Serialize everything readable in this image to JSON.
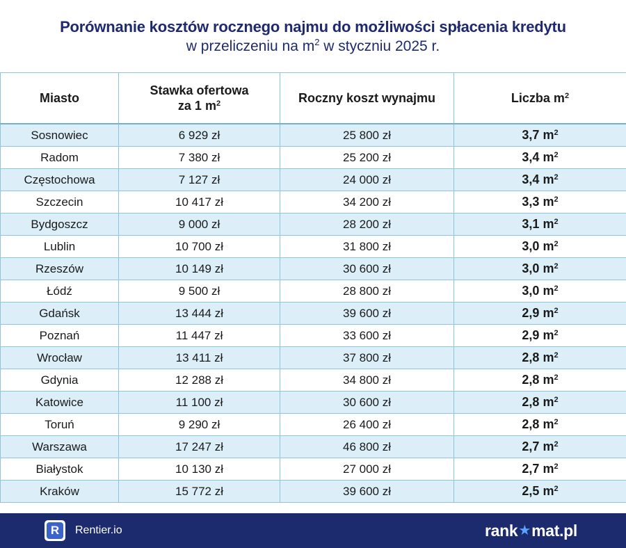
{
  "header": {
    "title": "Porównanie kosztów rocznego najmu do możliwości spłacenia kredytu",
    "subtitle_before": "w przeliczeniu na m",
    "subtitle_sup": "2",
    "subtitle_after": " w styczniu 2025 r."
  },
  "table": {
    "headers": {
      "city": "Miasto",
      "rate_line1": "Stawka ofertowa",
      "rate_line2": "za 1 m",
      "rate_sup": "2",
      "rent": "Roczny koszt wynajmu",
      "sqm": "Liczba m",
      "sqm_sup": "2"
    },
    "unit_sup": "2",
    "rows": [
      {
        "city": "Sosnowiec",
        "rate": "6 929 zł",
        "rent": "25 800 zł",
        "sqm": "3,7 m"
      },
      {
        "city": "Radom",
        "rate": "7 380 zł",
        "rent": "25 200 zł",
        "sqm": "3,4 m"
      },
      {
        "city": "Częstochowa",
        "rate": "7 127 zł",
        "rent": "24 000 zł",
        "sqm": "3,4 m"
      },
      {
        "city": "Szczecin",
        "rate": "10 417 zł",
        "rent": "34 200 zł",
        "sqm": "3,3 m"
      },
      {
        "city": "Bydgoszcz",
        "rate": "9 000 zł",
        "rent": "28 200 zł",
        "sqm": "3,1 m"
      },
      {
        "city": "Lublin",
        "rate": "10 700 zł",
        "rent": "31 800 zł",
        "sqm": "3,0 m"
      },
      {
        "city": "Rzeszów",
        "rate": "10 149 zł",
        "rent": "30 600 zł",
        "sqm": "3,0 m"
      },
      {
        "city": "Łódź",
        "rate": "9 500 zł",
        "rent": "28 800 zł",
        "sqm": "3,0 m"
      },
      {
        "city": "Gdańsk",
        "rate": "13 444 zł",
        "rent": "39 600 zł",
        "sqm": "2,9 m"
      },
      {
        "city": "Poznań",
        "rate": "11 447 zł",
        "rent": "33 600 zł",
        "sqm": "2,9 m"
      },
      {
        "city": "Wrocław",
        "rate": "13 411 zł",
        "rent": "37 800 zł",
        "sqm": "2,8 m"
      },
      {
        "city": "Gdynia",
        "rate": "12 288 zł",
        "rent": "34 800 zł",
        "sqm": "2,8 m"
      },
      {
        "city": "Katowice",
        "rate": "11 100 zł",
        "rent": "30 600 zł",
        "sqm": "2,8 m"
      },
      {
        "city": "Toruń",
        "rate": "9 290 zł",
        "rent": "26 400 zł",
        "sqm": "2,8 m"
      },
      {
        "city": "Warszawa",
        "rate": "17 247 zł",
        "rent": "46 800 zł",
        "sqm": "2,7 m"
      },
      {
        "city": "Białystok",
        "rate": "10 130 zł",
        "rent": "27 000 zł",
        "sqm": "2,7 m"
      },
      {
        "city": "Kraków",
        "rate": "15 772 zł",
        "rent": "39 600 zł",
        "sqm": "2,5 m"
      }
    ]
  },
  "footer": {
    "rentier_letter": "R",
    "rentier_name": "Rentier.io",
    "rankomat_before": "rank",
    "rankomat_star": "★",
    "rankomat_after": "mat.pl",
    "accent_color": "#1c2a6e"
  }
}
